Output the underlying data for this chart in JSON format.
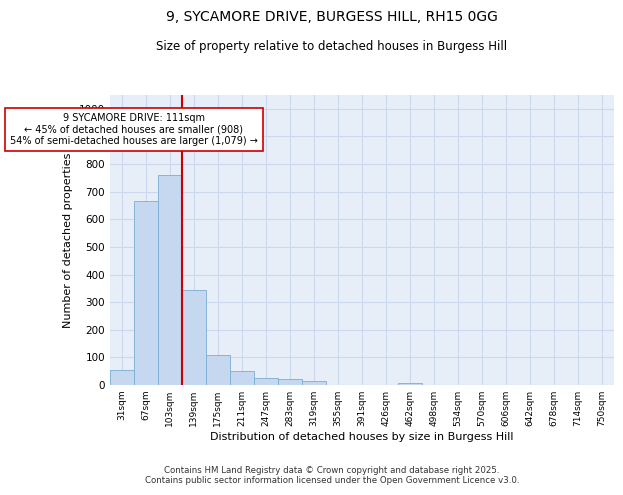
{
  "title_line1": "9, SYCAMORE DRIVE, BURGESS HILL, RH15 0GG",
  "title_line2": "Size of property relative to detached houses in Burgess Hill",
  "xlabel": "Distribution of detached houses by size in Burgess Hill",
  "ylabel": "Number of detached properties",
  "bar_labels": [
    "31sqm",
    "67sqm",
    "103sqm",
    "139sqm",
    "175sqm",
    "211sqm",
    "247sqm",
    "283sqm",
    "319sqm",
    "355sqm",
    "391sqm",
    "426sqm",
    "462sqm",
    "498sqm",
    "534sqm",
    "570sqm",
    "606sqm",
    "642sqm",
    "678sqm",
    "714sqm",
    "750sqm"
  ],
  "bar_values": [
    55,
    665,
    760,
    345,
    110,
    50,
    27,
    20,
    15,
    0,
    0,
    0,
    8,
    0,
    0,
    0,
    0,
    0,
    0,
    0,
    0
  ],
  "bar_color": "#c5d8f0",
  "bar_edge_color": "#7aadd4",
  "grid_color": "#ccd8ee",
  "vline_x": 2.5,
  "vline_color": "#cc0000",
  "annotation_text": "9 SYCAMORE DRIVE: 111sqm\n← 45% of detached houses are smaller (908)\n54% of semi-detached houses are larger (1,079) →",
  "annotation_box_color": "#ffffff",
  "annotation_box_edge": "#cc0000",
  "ylim": [
    0,
    1050
  ],
  "yticks": [
    0,
    100,
    200,
    300,
    400,
    500,
    600,
    700,
    800,
    900,
    1000
  ],
  "footnote": "Contains HM Land Registry data © Crown copyright and database right 2025.\nContains public sector information licensed under the Open Government Licence v3.0.",
  "bg_color": "#ffffff"
}
